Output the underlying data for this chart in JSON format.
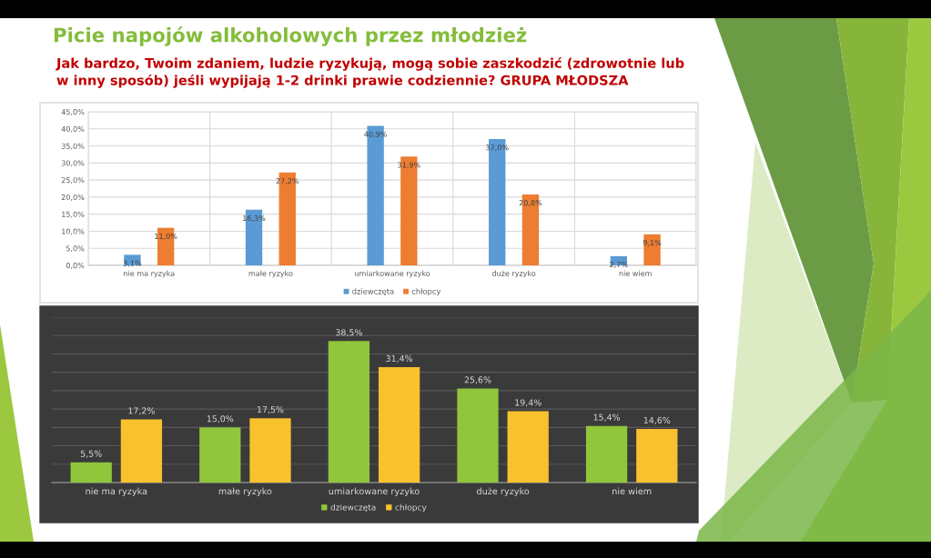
{
  "chart_data": [
    {
      "type": "bar",
      "title": "Picie napojów alkoholowych przez młodzież",
      "subtitle": "Jak bardzo, Twoim zdaniem, ludzie ryzykują, mogą sobie zaszkodzić (zdrowotnie lub w inny sposób) jeśli wypijają 1-2 drinki prawie codziennie? GRUPA MŁODSZA",
      "categories": [
        "nie ma ryzyka",
        "małe ryzyko",
        "umiarkowane ryzyko",
        "duże ryzyko",
        "nie wiem"
      ],
      "series": [
        {
          "name": "dziewczęta",
          "color": "#5b9bd5",
          "values": [
            3.1,
            16.3,
            40.9,
            37.0,
            2.7
          ],
          "value_labels": [
            "3,1%",
            "16,3%",
            "40,9%",
            "37,0%",
            "2,7%"
          ]
        },
        {
          "name": "chłopcy",
          "color": "#ed7d31",
          "values": [
            11.0,
            27.2,
            31.9,
            20.8,
            9.1
          ],
          "value_labels": [
            "11,0%",
            "27,2%",
            "31,9%",
            "20,8%",
            "9,1%"
          ]
        }
      ],
      "ylim": [
        0,
        45
      ],
      "yticks": [
        {
          "value": 0,
          "label": "0,0%"
        },
        {
          "value": 5,
          "label": "5,0%"
        },
        {
          "value": 10,
          "label": "10,0%"
        },
        {
          "value": 15,
          "label": "15,0%"
        },
        {
          "value": 20,
          "label": "20,0%"
        },
        {
          "value": 25,
          "label": "25,0%"
        },
        {
          "value": 30,
          "label": "30,0%"
        },
        {
          "value": 35,
          "label": "35,0%"
        },
        {
          "value": 40,
          "label": "40,0%"
        },
        {
          "value": 45,
          "label": "45,0%"
        }
      ],
      "grid": true,
      "legend": "bottom"
    },
    {
      "type": "bar",
      "categories": [
        "nie ma ryzyka",
        "małe ryzyko",
        "umiarkowane ryzyko",
        "duże ryzyko",
        "nie wiem"
      ],
      "series": [
        {
          "name": "dziewczęta",
          "color": "#8fc63c",
          "values": [
            5.5,
            15.0,
            38.5,
            25.6,
            15.4
          ],
          "value_labels": [
            "5,5%",
            "15,0%",
            "38,5%",
            "25,6%",
            "15,4%"
          ]
        },
        {
          "name": "chłopcy",
          "color": "#f8c12e",
          "values": [
            17.2,
            17.5,
            31.4,
            19.4,
            14.6
          ],
          "value_labels": [
            "17,2%",
            "17,5%",
            "31,4%",
            "19,4%",
            "14,6%"
          ]
        }
      ],
      "ylim": [
        0,
        45
      ],
      "yticks": [
        {
          "value": 0,
          "label": null
        },
        {
          "value": 5,
          "label": null
        },
        {
          "value": 10,
          "label": null
        },
        {
          "value": 15,
          "label": null
        },
        {
          "value": 20,
          "label": null
        },
        {
          "value": 25,
          "label": null
        },
        {
          "value": 30,
          "label": null
        },
        {
          "value": 35,
          "label": null
        },
        {
          "value": 40,
          "label": null
        },
        {
          "value": 45,
          "label": null
        }
      ],
      "tick_labels": "x",
      "grid": "y",
      "legend": "bottom"
    }
  ]
}
